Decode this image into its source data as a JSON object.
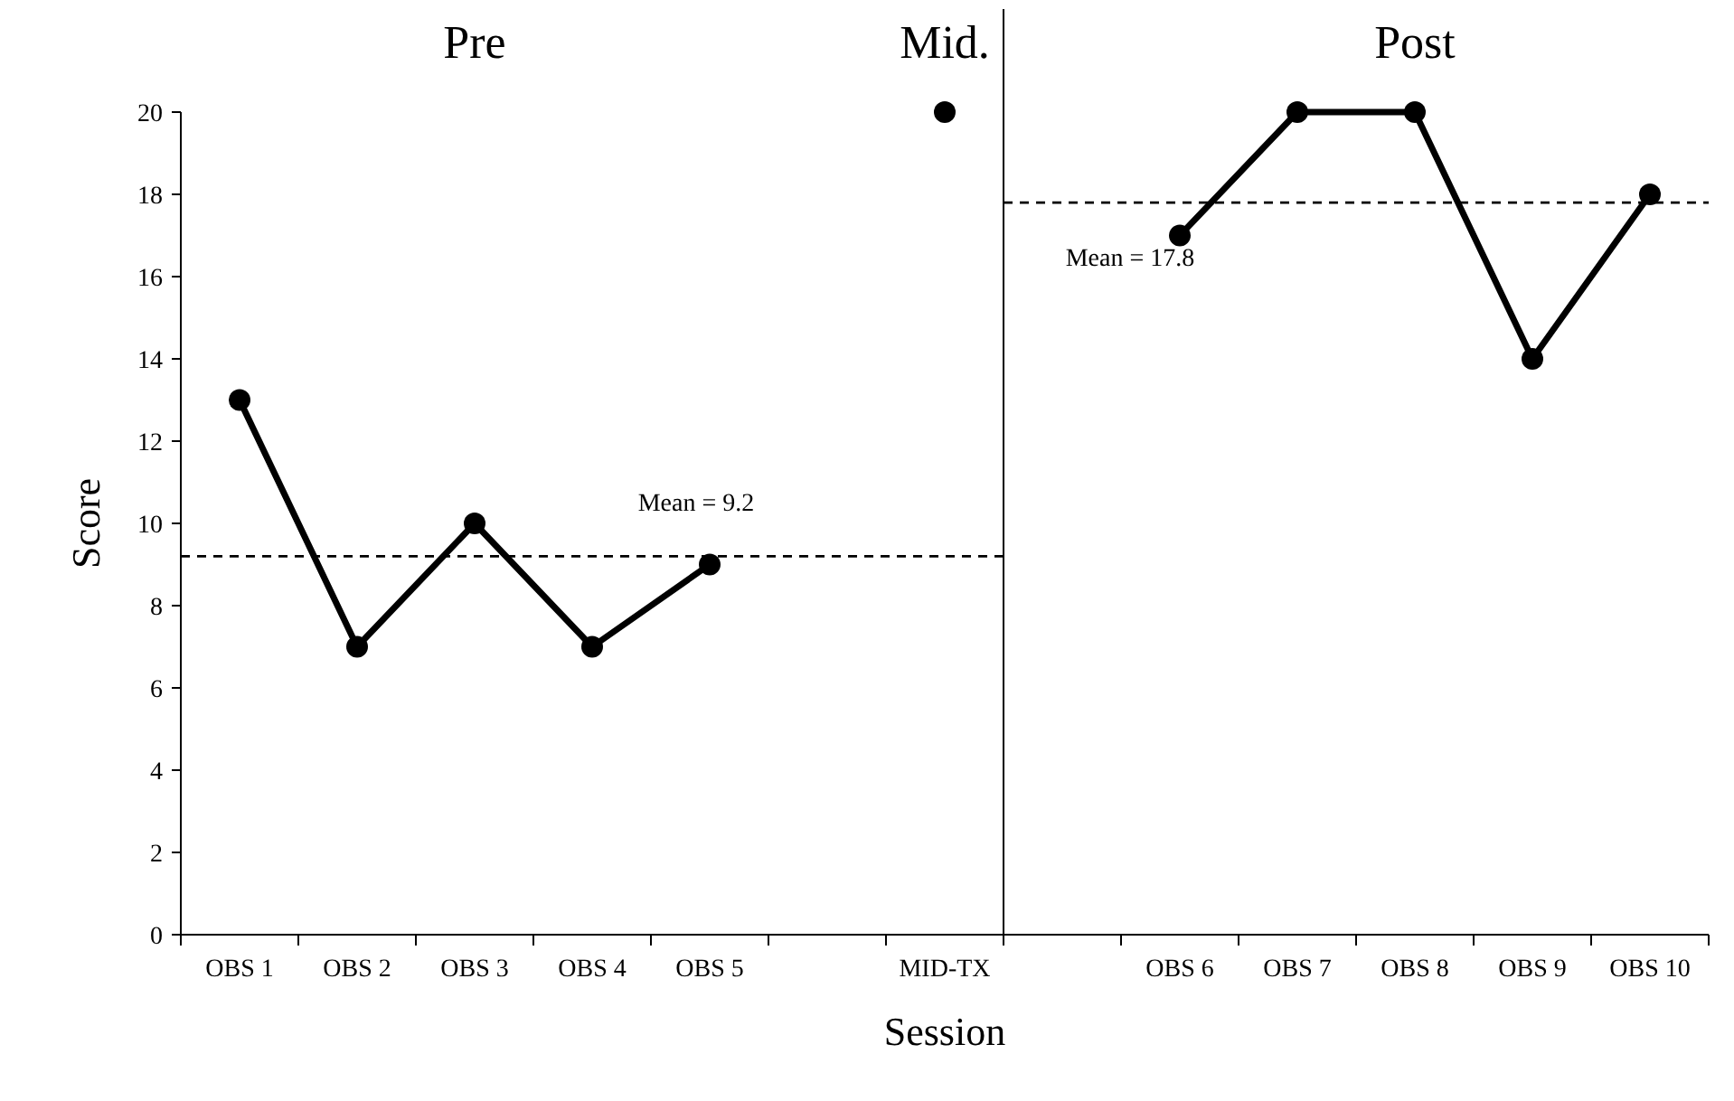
{
  "chart_data": {
    "type": "line",
    "xlabel": "Session",
    "ylabel": "Score",
    "categories": [
      "OBS 1",
      "OBS 2",
      "OBS 3",
      "OBS 4",
      "OBS 5",
      null,
      "MID-TX",
      null,
      "OBS 6",
      "OBS 7",
      "OBS 8",
      "OBS 9",
      "OBS 10"
    ],
    "series": [
      {
        "color": "#000000",
        "values": [
          13,
          7,
          10,
          7,
          9,
          null,
          null,
          null,
          17,
          20,
          20,
          14,
          18
        ]
      },
      {
        "type": "scatter",
        "color": "#000000",
        "x": [
          "MID-TX"
        ],
        "values": [
          20
        ]
      }
    ],
    "ylim": [
      0,
      20
    ],
    "yticks": [
      0,
      2,
      4,
      6,
      8,
      10,
      12,
      14,
      16,
      18,
      20
    ],
    "marker": "circle",
    "line_style": "solid",
    "grid": false,
    "legend": false,
    "ref_lines": [
      {
        "axis": "y",
        "value": 9.2,
        "label": "Mean = 9.2",
        "color": "#000000",
        "line_style": "dashed"
      },
      {
        "axis": "y",
        "value": 17.8,
        "label": "Mean = 17.8",
        "color": "#000000",
        "line_style": "dashed"
      }
    ],
    "annotations": [
      "Pre",
      "Mid.",
      "Post"
    ]
  }
}
